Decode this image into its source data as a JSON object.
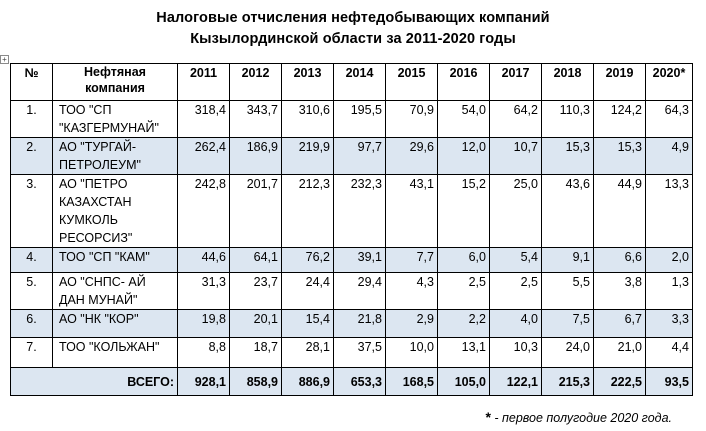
{
  "title": {
    "line1": "Налоговые отчисления нефтедобывающих компаний",
    "line2": "Кызылординской области за 2011-2020 годы"
  },
  "table": {
    "header": {
      "no": "№",
      "company": "Нефтяная компания",
      "years": [
        "2011",
        "2012",
        "2013",
        "2014",
        "2015",
        "2016",
        "2017",
        "2018",
        "2019",
        "2020*"
      ]
    },
    "rows": [
      {
        "idx": "1.",
        "company": "ТОО \"СП \"КАЗГЕРМУНАЙ\"",
        "values": [
          "318,4",
          "343,7",
          "310,6",
          "195,5",
          "70,9",
          "54,0",
          "64,2",
          "110,3",
          "124,2",
          "64,3"
        ]
      },
      {
        "idx": "2.",
        "company": "АО \"ТУРГАЙ-ПЕТРОЛЕУМ\"",
        "values": [
          "262,4",
          "186,9",
          "219,9",
          "97,7",
          "29,6",
          "12,0",
          "10,7",
          "15,3",
          "15,3",
          "4,9"
        ]
      },
      {
        "idx": "3.",
        "company": "АО \"ПЕТРО КАЗАХСТАН КУМКОЛЬ РЕСОРСИЗ\"",
        "values": [
          "242,8",
          "201,7",
          "212,3",
          "232,3",
          "43,1",
          "15,2",
          "25,0",
          "43,6",
          "44,9",
          "13,3"
        ]
      },
      {
        "idx": "4.",
        "company": "ТОО \"СП \"КАМ\"",
        "values": [
          "44,6",
          "64,1",
          "76,2",
          "39,1",
          "7,7",
          "6,0",
          "5,4",
          "9,1",
          "6,6",
          "2,0"
        ]
      },
      {
        "idx": "5.",
        "company": "АО \"СНПС- АЙ ДАН МУНАЙ\"",
        "values": [
          "31,3",
          "23,7",
          "24,4",
          "29,4",
          "4,3",
          "2,5",
          "2,5",
          "5,5",
          "3,8",
          "1,3"
        ]
      },
      {
        "idx": "6.",
        "company": "АО \"НК \"КОР\"",
        "values": [
          "19,8",
          "20,1",
          "15,4",
          "21,8",
          "2,9",
          "2,2",
          "4,0",
          "7,5",
          "6,7",
          "3,3"
        ]
      },
      {
        "idx": "7.",
        "company": "ТОО \"КОЛЬЖАН\"",
        "values": [
          "8,8",
          "18,7",
          "28,1",
          "37,5",
          "10,0",
          "13,1",
          "10,3",
          "24,0",
          "21,0",
          "4,4"
        ]
      }
    ],
    "total": {
      "label": "ВСЕГО:",
      "values": [
        "928,1",
        "858,9",
        "886,9",
        "653,3",
        "168,5",
        "105,0",
        "122,1",
        "215,3",
        "222,5",
        "93,5"
      ]
    }
  },
  "footnote": {
    "star": "*",
    "text": " - первое полугодие 2020 года."
  },
  "colors": {
    "row_shade": "#dce6f1"
  },
  "icons": {
    "table_anchor": "move-handle-icon"
  }
}
